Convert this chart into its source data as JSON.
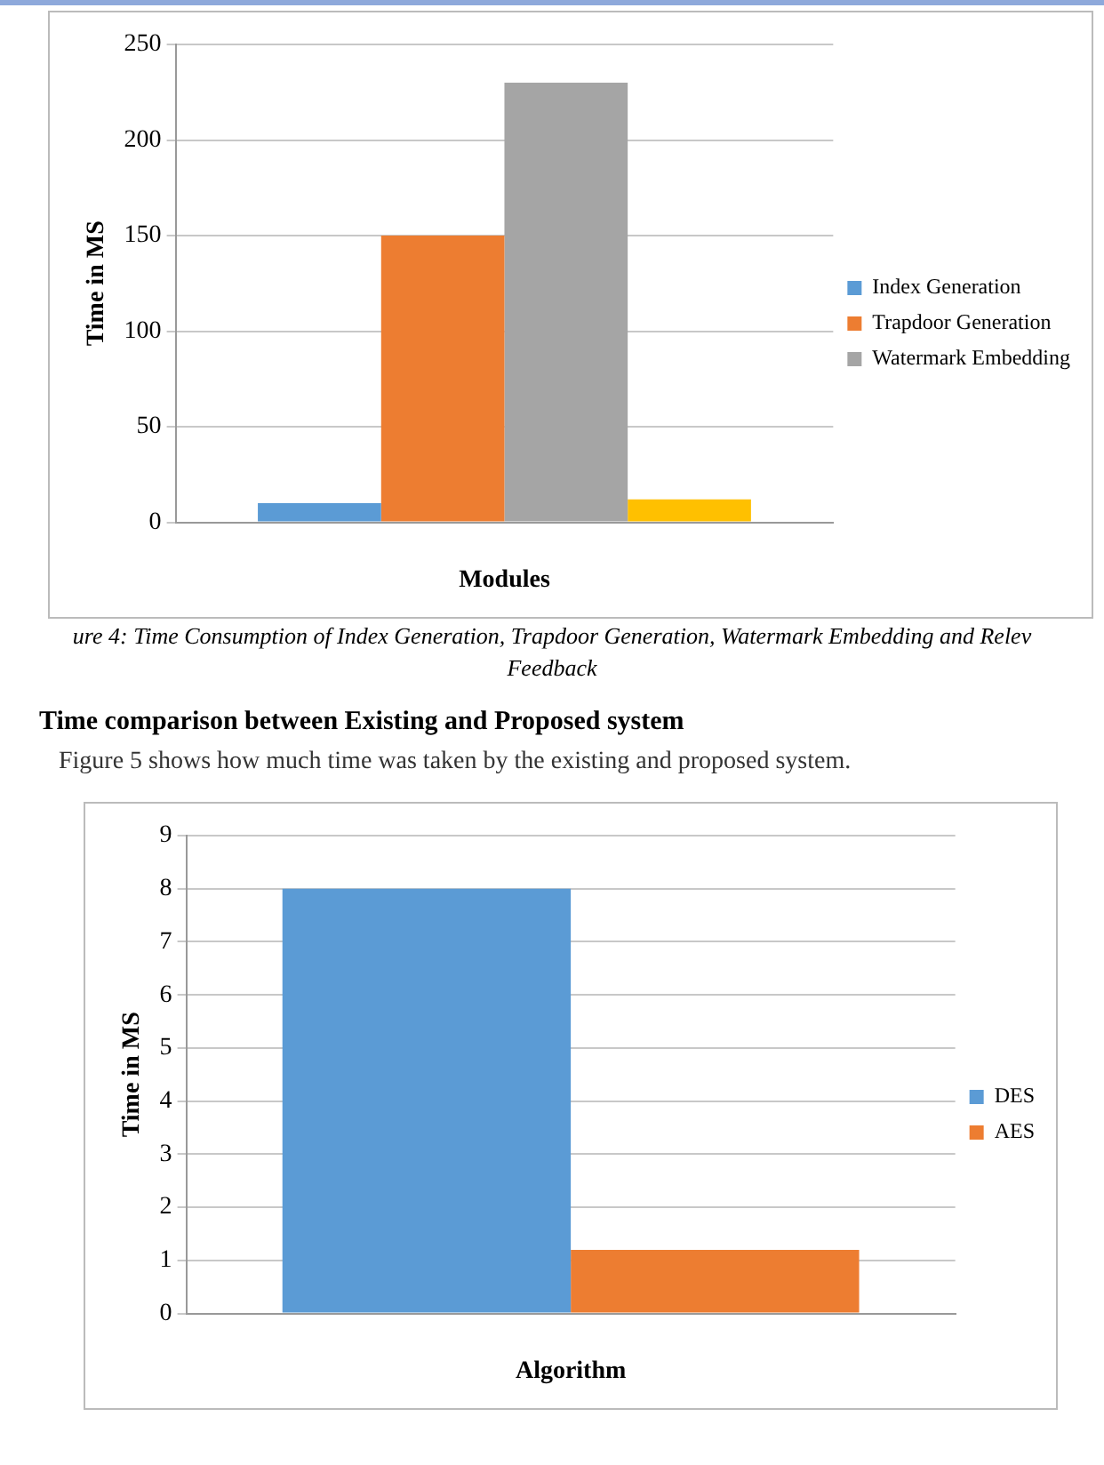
{
  "chart_data": [
    {
      "type": "bar",
      "categories": [
        null
      ],
      "xlabel": "Modules",
      "ylabel": "Time in MS",
      "ylim": [
        0,
        250
      ],
      "yticks": [
        0,
        50,
        100,
        150,
        200,
        250
      ],
      "grid": "y",
      "legend": "right",
      "series": [
        {
          "name": "Index Generation",
          "color": "#5b9bd5",
          "values": [
            10
          ]
        },
        {
          "name": "Trapdoor Generation",
          "color": "#ed7d31",
          "values": [
            150
          ]
        },
        {
          "name": "Watermark Embedding",
          "color": "#a5a5a5",
          "values": [
            230
          ]
        },
        {
          "color": "#ffc000",
          "values": [
            12
          ]
        }
      ],
      "annotations": [
        "ure 4: Time Consumption of Index Generation, Trapdoor Generation, Watermark Embedding and Relev",
        "Feedback"
      ]
    },
    {
      "type": "bar",
      "categories": [
        null
      ],
      "xlabel": "Algorithm",
      "ylabel": "Time in MS",
      "ylim": [
        0,
        9
      ],
      "yticks": [
        0,
        1,
        2,
        3,
        4,
        5,
        6,
        7,
        8,
        9
      ],
      "grid": "y",
      "legend": "right",
      "series": [
        {
          "name": "DES",
          "color": "#5b9bd5",
          "values": [
            8
          ]
        },
        {
          "name": "AES",
          "color": "#ed7d31",
          "values": [
            1.2
          ]
        }
      ],
      "annotations": [
        "Time comparison between Existing and Proposed system",
        "Figure 5 shows how much time was taken by the existing and proposed system."
      ]
    }
  ]
}
